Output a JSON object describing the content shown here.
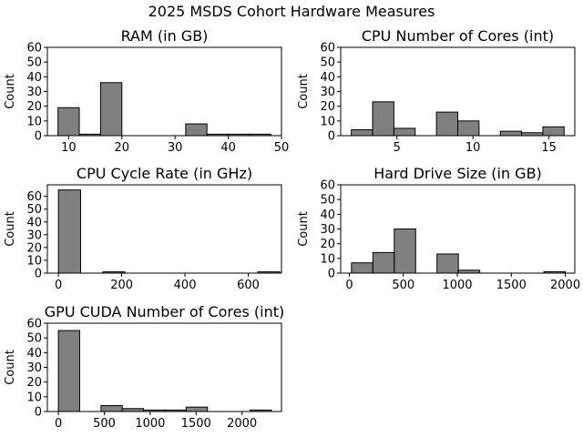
{
  "chart_data": {
    "suptitle": "2025 MSDS Cohort Hardware Measures",
    "bar_color": "#808080",
    "edge_color": "#000000",
    "charts": [
      {
        "type": "histogram",
        "title": "RAM (in GB)",
        "ylabel": "Count",
        "xlim": [
          6.0,
          50.0
        ],
        "ylim": [
          0,
          60
        ],
        "xticks": [
          10,
          20,
          30,
          40,
          50
        ],
        "yticks": [
          0,
          10,
          20,
          30,
          40,
          50,
          60
        ],
        "bins": [
          {
            "x0": 8.0,
            "x1": 12.0,
            "count": 19
          },
          {
            "x0": 12.0,
            "x1": 16.0,
            "count": 1
          },
          {
            "x0": 16.0,
            "x1": 20.0,
            "count": 36
          },
          {
            "x0": 20.0,
            "x1": 24.0,
            "count": 0
          },
          {
            "x0": 24.0,
            "x1": 28.0,
            "count": 0
          },
          {
            "x0": 28.0,
            "x1": 32.0,
            "count": 0
          },
          {
            "x0": 32.0,
            "x1": 36.0,
            "count": 8
          },
          {
            "x0": 36.0,
            "x1": 40.0,
            "count": 1
          },
          {
            "x0": 40.0,
            "x1": 44.0,
            "count": 1
          },
          {
            "x0": 44.0,
            "x1": 48.0,
            "count": 1
          }
        ]
      },
      {
        "type": "histogram",
        "title": "CPU Number of Cores (int)",
        "ylabel": "Count",
        "xlim": [
          1.3,
          16.7
        ],
        "ylim": [
          0,
          60
        ],
        "xticks": [
          5,
          10,
          15
        ],
        "yticks": [
          0,
          10,
          20,
          30,
          40,
          50,
          60
        ],
        "bins": [
          {
            "x0": 2.0,
            "x1": 3.4,
            "count": 4
          },
          {
            "x0": 3.4,
            "x1": 4.8,
            "count": 23
          },
          {
            "x0": 4.8,
            "x1": 6.2,
            "count": 5
          },
          {
            "x0": 6.2,
            "x1": 7.6,
            "count": 0
          },
          {
            "x0": 7.6,
            "x1": 9.0,
            "count": 16
          },
          {
            "x0": 9.0,
            "x1": 10.4,
            "count": 10
          },
          {
            "x0": 10.4,
            "x1": 11.8,
            "count": 0
          },
          {
            "x0": 11.8,
            "x1": 13.2,
            "count": 3
          },
          {
            "x0": 13.2,
            "x1": 14.6,
            "count": 2
          },
          {
            "x0": 14.6,
            "x1": 16.0,
            "count": 6
          }
        ]
      },
      {
        "type": "histogram",
        "title": "CPU Cycle Rate (in GHz)",
        "ylabel": "Count",
        "xlim": [
          -35,
          705
        ],
        "ylim": [
          0,
          69
        ],
        "xticks": [
          0,
          200,
          400,
          600
        ],
        "yticks": [
          0,
          10,
          20,
          30,
          40,
          50,
          60
        ],
        "bins": [
          {
            "x0": 0,
            "x1": 70,
            "count": 65
          },
          {
            "x0": 70,
            "x1": 140,
            "count": 0
          },
          {
            "x0": 140,
            "x1": 210,
            "count": 1
          },
          {
            "x0": 210,
            "x1": 280,
            "count": 0
          },
          {
            "x0": 280,
            "x1": 350,
            "count": 0
          },
          {
            "x0": 350,
            "x1": 420,
            "count": 0
          },
          {
            "x0": 420,
            "x1": 490,
            "count": 0
          },
          {
            "x0": 490,
            "x1": 560,
            "count": 0
          },
          {
            "x0": 560,
            "x1": 630,
            "count": 0
          },
          {
            "x0": 630,
            "x1": 700,
            "count": 1
          }
        ]
      },
      {
        "type": "histogram",
        "title": "Hard Drive Size (in GB)",
        "ylabel": "Count",
        "xlim": [
          -80,
          2088
        ],
        "ylim": [
          0,
          60
        ],
        "xticks": [
          0,
          500,
          1000,
          1500,
          2000
        ],
        "yticks": [
          0,
          10,
          20,
          30,
          40,
          50,
          60
        ],
        "bins": [
          {
            "x0": 20,
            "x1": 218,
            "count": 7
          },
          {
            "x0": 218,
            "x1": 416,
            "count": 14
          },
          {
            "x0": 416,
            "x1": 614,
            "count": 30
          },
          {
            "x0": 614,
            "x1": 812,
            "count": 0
          },
          {
            "x0": 812,
            "x1": 1010,
            "count": 13
          },
          {
            "x0": 1010,
            "x1": 1208,
            "count": 2
          },
          {
            "x0": 1208,
            "x1": 1406,
            "count": 0
          },
          {
            "x0": 1406,
            "x1": 1604,
            "count": 0
          },
          {
            "x0": 1604,
            "x1": 1802,
            "count": 0
          },
          {
            "x0": 1802,
            "x1": 2000,
            "count": 1
          }
        ]
      },
      {
        "type": "histogram",
        "title": "GPU CUDA Number of Cores (int)",
        "ylabel": "Count",
        "xlim": [
          -120,
          2430
        ],
        "ylim": [
          0,
          60
        ],
        "xticks": [
          0,
          500,
          1000,
          1500,
          2000
        ],
        "yticks": [
          0,
          10,
          20,
          30,
          40,
          50,
          60
        ],
        "bins": [
          {
            "x0": 0,
            "x1": 232,
            "count": 55
          },
          {
            "x0": 232,
            "x1": 464,
            "count": 0
          },
          {
            "x0": 464,
            "x1": 696,
            "count": 4
          },
          {
            "x0": 696,
            "x1": 928,
            "count": 2
          },
          {
            "x0": 928,
            "x1": 1160,
            "count": 1
          },
          {
            "x0": 1160,
            "x1": 1392,
            "count": 1
          },
          {
            "x0": 1392,
            "x1": 1624,
            "count": 3
          },
          {
            "x0": 1624,
            "x1": 1856,
            "count": 0
          },
          {
            "x0": 1856,
            "x1": 2088,
            "count": 0
          },
          {
            "x0": 2088,
            "x1": 2320,
            "count": 1
          }
        ]
      }
    ]
  }
}
